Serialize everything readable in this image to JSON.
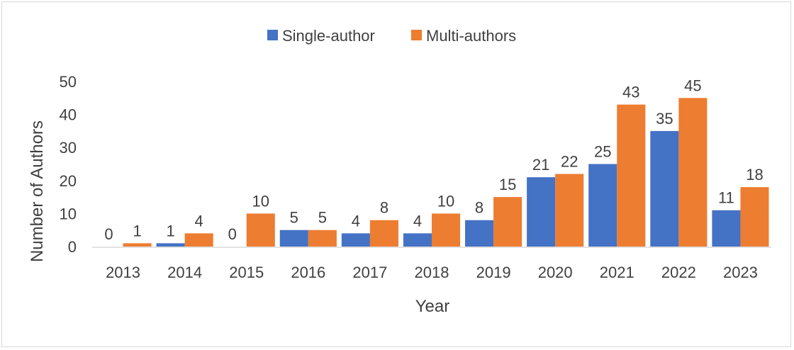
{
  "chart_data": {
    "type": "bar",
    "xlabel": "Year",
    "ylabel": "Number  of Authors",
    "ylim": [
      0,
      50
    ],
    "yticks": [
      0,
      10,
      20,
      30,
      40,
      50
    ],
    "grid": false,
    "legend_position": "top-center",
    "categories": [
      "2013",
      "2014",
      "2015",
      "2016",
      "2017",
      "2018",
      "2019",
      "2020",
      "2021",
      "2022",
      "2023"
    ],
    "series": [
      {
        "name": "Single-author",
        "color": "#4472c4",
        "values": [
          0,
          1,
          0,
          5,
          4,
          4,
          8,
          21,
          25,
          35,
          11
        ]
      },
      {
        "name": "Multi-authors",
        "color": "#ed7d31",
        "values": [
          1,
          4,
          10,
          5,
          8,
          10,
          15,
          22,
          43,
          45,
          18
        ]
      }
    ]
  }
}
